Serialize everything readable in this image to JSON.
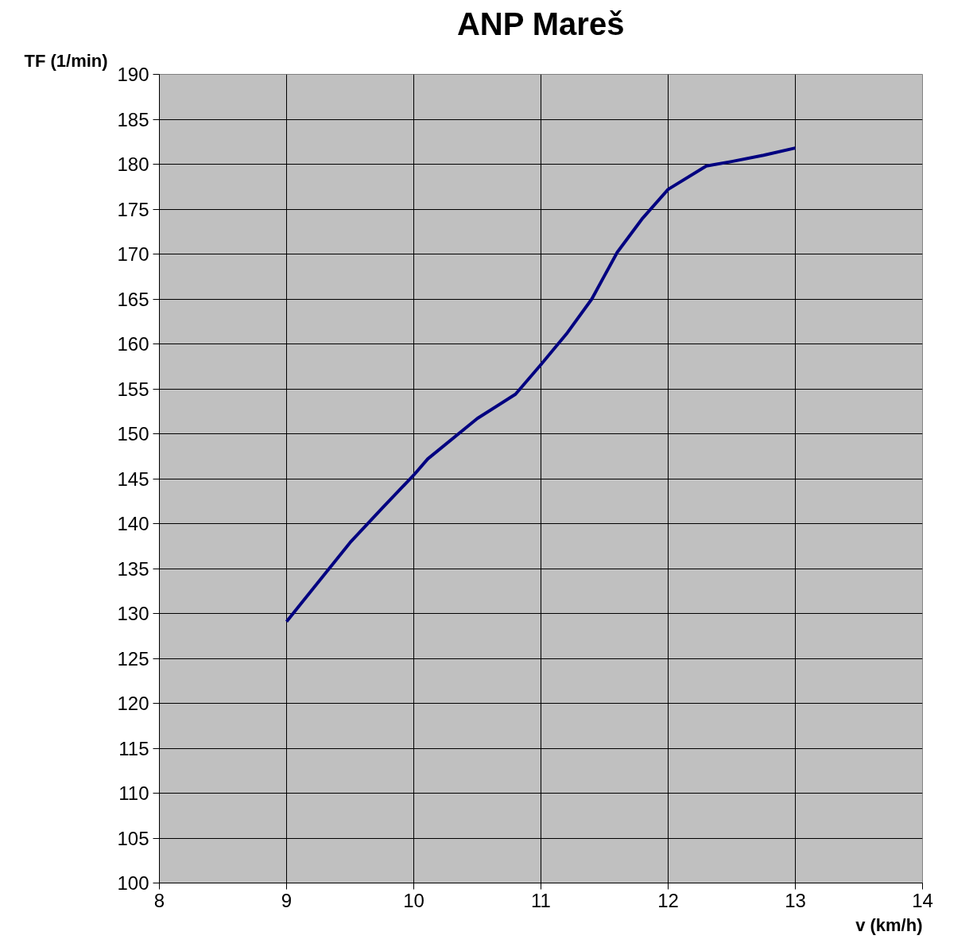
{
  "chart_data": {
    "type": "line",
    "title": "ANP Mareš",
    "xlabel": "v (km/h)",
    "ylabel": "TF (1/min)",
    "x": [
      9,
      9.5,
      9.75,
      10,
      10.11,
      10.5,
      10.8,
      11,
      11.2,
      11.4,
      11.6,
      11.8,
      12,
      12.3,
      12.5,
      12.75,
      13
    ],
    "series": [
      {
        "color": "#000080",
        "values": [
          129.1,
          137.9,
          141.7,
          145.4,
          147.2,
          151.7,
          154.4,
          157.7,
          161.1,
          165,
          170.2,
          174,
          177.2,
          179.8,
          180.3,
          181,
          181.8
        ]
      }
    ],
    "xlim": [
      8,
      14
    ],
    "xticks": [
      8,
      9,
      10,
      11,
      12,
      13,
      14
    ],
    "ylim": [
      100,
      190
    ],
    "yticks": [
      100,
      105,
      110,
      115,
      120,
      125,
      130,
      135,
      140,
      145,
      150,
      155,
      160,
      165,
      170,
      175,
      180,
      185,
      190
    ],
    "grid": true,
    "marker": "none",
    "line_style": "solid"
  }
}
